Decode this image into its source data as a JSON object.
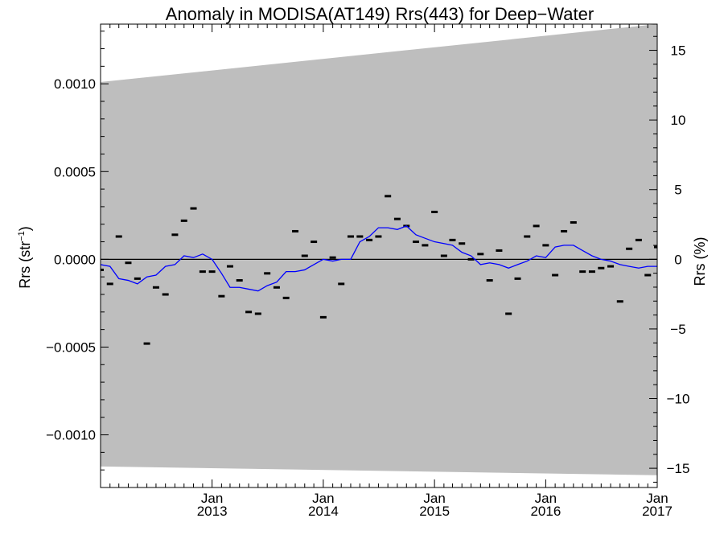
{
  "chart_data": {
    "type": "line",
    "title": "Anomaly in MODISA(AT149) Rrs(443) for Deep−Water",
    "ylabel_left": "Rrs (str",
    "ylabel_left_sup": "−1",
    "ylabel_left_close": ")",
    "ylabel_right": "Rrs (%)",
    "xlim": [
      "2012-01-01",
      "2017-01-01"
    ],
    "ylim_left": [
      -0.0013,
      0.00134
    ],
    "ylim_right": [
      -16.38,
      16.88
    ],
    "x_ticks": [
      {
        "date": "2013-01-01",
        "label_top": "Jan",
        "label_bottom": "2013"
      },
      {
        "date": "2014-01-01",
        "label_top": "Jan",
        "label_bottom": "2014"
      },
      {
        "date": "2015-01-01",
        "label_top": "Jan",
        "label_bottom": "2015"
      },
      {
        "date": "2016-01-01",
        "label_top": "Jan",
        "label_bottom": "2016"
      },
      {
        "date": "2017-01-01",
        "label_top": "Jan",
        "label_bottom": "2017"
      }
    ],
    "y_ticks_left": [
      {
        "value": 0.001,
        "label": "0.0010"
      },
      {
        "value": 0.0005,
        "label": "0.0005"
      },
      {
        "value": 0.0,
        "label": "0.0000"
      },
      {
        "value": -0.0005,
        "label": "−0.0005"
      },
      {
        "value": -0.001,
        "label": "−0.0010"
      }
    ],
    "y_ticks_right": [
      {
        "value": 15,
        "label": "15"
      },
      {
        "value": 10,
        "label": "10"
      },
      {
        "value": 5,
        "label": "5"
      },
      {
        "value": 0,
        "label": "0"
      },
      {
        "value": -5,
        "label": "−5"
      },
      {
        "value": -10,
        "label": "−10"
      },
      {
        "value": -15,
        "label": "−15"
      }
    ],
    "uncertainty_band": {
      "color": "#bebebe",
      "x": [
        "2012-01-01",
        "2017-01-01"
      ],
      "upper": [
        0.00101,
        0.00134
      ],
      "lower": [
        -0.00118,
        -0.00123
      ]
    },
    "zero_line": 0.0,
    "series": [
      {
        "type": "marker",
        "marker": "dash",
        "color": "#000000",
        "x": [
          "2012-01-01",
          "2012-02-01",
          "2012-03-01",
          "2012-04-01",
          "2012-05-01",
          "2012-06-01",
          "2012-07-01",
          "2012-08-01",
          "2012-09-01",
          "2012-10-01",
          "2012-11-01",
          "2012-12-01",
          "2013-01-01",
          "2013-02-01",
          "2013-03-01",
          "2013-04-01",
          "2013-05-01",
          "2013-06-01",
          "2013-07-01",
          "2013-08-01",
          "2013-09-01",
          "2013-10-01",
          "2013-11-01",
          "2013-12-01",
          "2014-01-01",
          "2014-02-01",
          "2014-03-01",
          "2014-04-01",
          "2014-05-01",
          "2014-06-01",
          "2014-07-01",
          "2014-08-01",
          "2014-09-01",
          "2014-10-01",
          "2014-11-01",
          "2014-12-01",
          "2015-01-01",
          "2015-02-01",
          "2015-03-01",
          "2015-04-01",
          "2015-05-01",
          "2015-06-01",
          "2015-07-01",
          "2015-08-01",
          "2015-09-01",
          "2015-10-01",
          "2015-11-01",
          "2015-12-01",
          "2016-01-01",
          "2016-02-01",
          "2016-03-01",
          "2016-04-01",
          "2016-05-01",
          "2016-06-01",
          "2016-07-01",
          "2016-08-01",
          "2016-09-01",
          "2016-10-01",
          "2016-11-01",
          "2016-12-01",
          "2017-01-01"
        ],
        "y": [
          -6e-05,
          -0.00014,
          0.00013,
          -2e-05,
          -0.00011,
          -0.00048,
          -0.00016,
          -0.0002,
          0.00014,
          0.00022,
          0.00029,
          -7e-05,
          -7e-05,
          -0.00021,
          -4e-05,
          -0.00012,
          -0.0003,
          -0.00031,
          -8e-05,
          -0.00016,
          -0.00022,
          0.00016,
          2e-05,
          0.0001,
          -0.00033,
          1e-05,
          -0.00014,
          0.00013,
          0.00013,
          0.00011,
          0.00013,
          0.00036,
          0.00023,
          0.00019,
          0.0001,
          8e-05,
          0.00027,
          2e-05,
          0.00011,
          9e-05,
          0.0,
          3e-05,
          -0.00012,
          5e-05,
          -0.00031,
          -0.00011,
          0.00013,
          0.00019,
          8e-05,
          -9e-05,
          0.00016,
          0.00021,
          -7e-05,
          -7e-05,
          -5e-05,
          -4e-05,
          -0.00024,
          6e-05,
          0.00011,
          -9e-05,
          7e-05
        ]
      },
      {
        "type": "line",
        "color": "#0000ff",
        "x": [
          "2012-01-01",
          "2012-02-01",
          "2012-03-01",
          "2012-04-01",
          "2012-05-01",
          "2012-06-01",
          "2012-07-01",
          "2012-08-01",
          "2012-09-01",
          "2012-10-01",
          "2012-11-01",
          "2012-12-01",
          "2013-01-01",
          "2013-02-01",
          "2013-03-01",
          "2013-04-01",
          "2013-05-01",
          "2013-06-01",
          "2013-07-01",
          "2013-08-01",
          "2013-09-01",
          "2013-10-01",
          "2013-11-01",
          "2013-12-01",
          "2014-01-01",
          "2014-02-01",
          "2014-03-01",
          "2014-04-01",
          "2014-05-01",
          "2014-06-01",
          "2014-07-01",
          "2014-08-01",
          "2014-09-01",
          "2014-10-01",
          "2014-11-01",
          "2014-12-01",
          "2015-01-01",
          "2015-02-01",
          "2015-03-01",
          "2015-04-01",
          "2015-05-01",
          "2015-06-01",
          "2015-07-01",
          "2015-08-01",
          "2015-09-01",
          "2015-10-01",
          "2015-11-01",
          "2015-12-01",
          "2016-01-01",
          "2016-02-01",
          "2016-03-01",
          "2016-04-01",
          "2016-05-01",
          "2016-06-01",
          "2016-07-01",
          "2016-08-01",
          "2016-09-01",
          "2016-10-01",
          "2016-11-01",
          "2016-12-01",
          "2017-01-01"
        ],
        "y": [
          -3e-05,
          -4e-05,
          -0.00011,
          -0.00012,
          -0.00014,
          -0.0001,
          -9e-05,
          -4e-05,
          -3e-05,
          2e-05,
          1e-05,
          3e-05,
          0.0,
          -8e-05,
          -0.00016,
          -0.00016,
          -0.00017,
          -0.00018,
          -0.00015,
          -0.00013,
          -7e-05,
          -7e-05,
          -6e-05,
          -3e-05,
          0.0,
          -1e-05,
          0.0,
          0.0,
          0.0001,
          0.00013,
          0.00018,
          0.00018,
          0.00017,
          0.00019,
          0.00014,
          0.00012,
          0.0001,
          9e-05,
          8e-05,
          4e-05,
          2e-05,
          -3e-05,
          -2e-05,
          -3e-05,
          -5e-05,
          -3e-05,
          -1e-05,
          2e-05,
          1e-05,
          7e-05,
          8e-05,
          8e-05,
          5e-05,
          2e-05,
          0.0,
          -1e-05,
          -3e-05,
          -4e-05,
          -5e-05,
          -4e-05,
          -4e-05
        ]
      }
    ]
  }
}
